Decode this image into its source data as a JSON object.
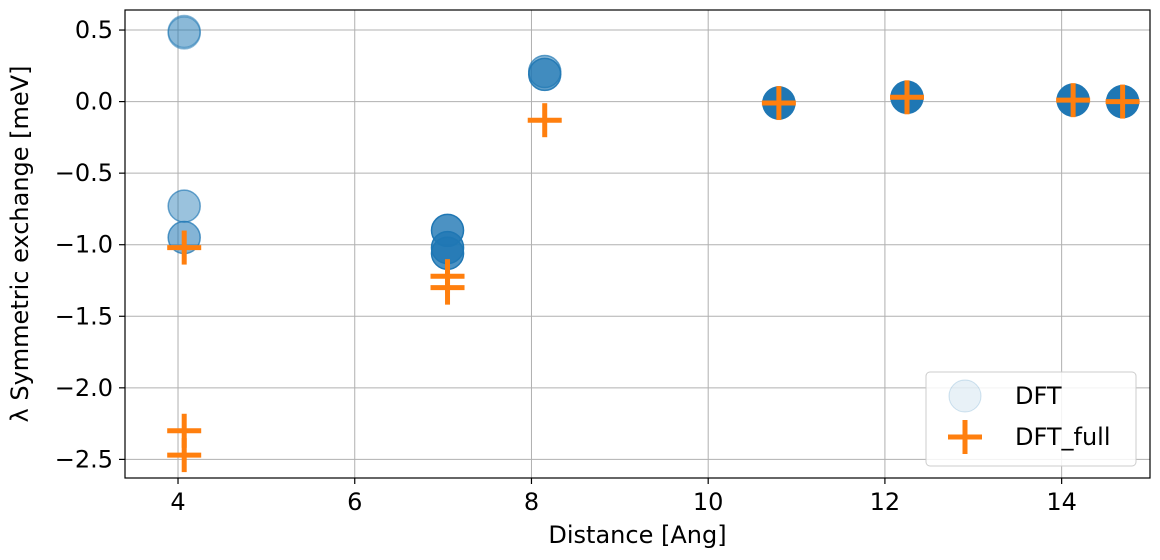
{
  "chart_data": {
    "type": "scatter",
    "xlabel": "Distance [Ang]",
    "ylabel": "λ Symmetric exchange [meV]",
    "xlim": [
      3.4,
      15.0
    ],
    "ylim": [
      -2.63,
      0.64
    ],
    "xticks": [
      4,
      6,
      8,
      10,
      12,
      14
    ],
    "yticks": [
      0.5,
      0.0,
      -0.5,
      -1.0,
      -1.5,
      -2.0,
      -2.5
    ],
    "ytick_labels": [
      "0.5",
      "0.0",
      "−0.5",
      "−1.0",
      "−1.5",
      "−2.0",
      "−2.5"
    ],
    "xtick_labels": [
      "4",
      "6",
      "8",
      "10",
      "12",
      "14"
    ],
    "grid": true,
    "legend_position": "bottom-right",
    "series": [
      {
        "name": "DFT",
        "marker": "circle",
        "color": "#1f77b4",
        "points": [
          {
            "x": 4.07,
            "y": 0.48,
            "alpha": 0.3
          },
          {
            "x": 4.07,
            "y": 0.49,
            "alpha": 0.3
          },
          {
            "x": 4.07,
            "y": -0.73,
            "alpha": 0.45
          },
          {
            "x": 4.07,
            "y": -0.95,
            "alpha": 0.55
          },
          {
            "x": 7.05,
            "y": -0.9,
            "alpha": 0.8
          },
          {
            "x": 7.05,
            "y": -1.02,
            "alpha": 0.8
          },
          {
            "x": 7.05,
            "y": -1.06,
            "alpha": 0.8
          },
          {
            "x": 8.15,
            "y": 0.19,
            "alpha": 0.7
          },
          {
            "x": 8.15,
            "y": 0.21,
            "alpha": 0.5
          },
          {
            "x": 10.8,
            "y": -0.01,
            "alpha": 1.0
          },
          {
            "x": 12.25,
            "y": 0.03,
            "alpha": 1.0
          },
          {
            "x": 14.13,
            "y": 0.01,
            "alpha": 1.0
          },
          {
            "x": 14.69,
            "y": 0.0,
            "alpha": 1.0
          }
        ]
      },
      {
        "name": "DFT_full",
        "marker": "plus",
        "color": "#ff7f0e",
        "points": [
          {
            "x": 4.07,
            "y": -1.02
          },
          {
            "x": 4.07,
            "y": -2.3
          },
          {
            "x": 4.07,
            "y": -2.47
          },
          {
            "x": 7.05,
            "y": -1.22
          },
          {
            "x": 7.05,
            "y": -1.3
          },
          {
            "x": 8.15,
            "y": -0.13
          },
          {
            "x": 10.8,
            "y": -0.01
          },
          {
            "x": 12.25,
            "y": 0.03
          },
          {
            "x": 14.13,
            "y": 0.01
          },
          {
            "x": 14.69,
            "y": 0.0
          }
        ]
      }
    ]
  }
}
